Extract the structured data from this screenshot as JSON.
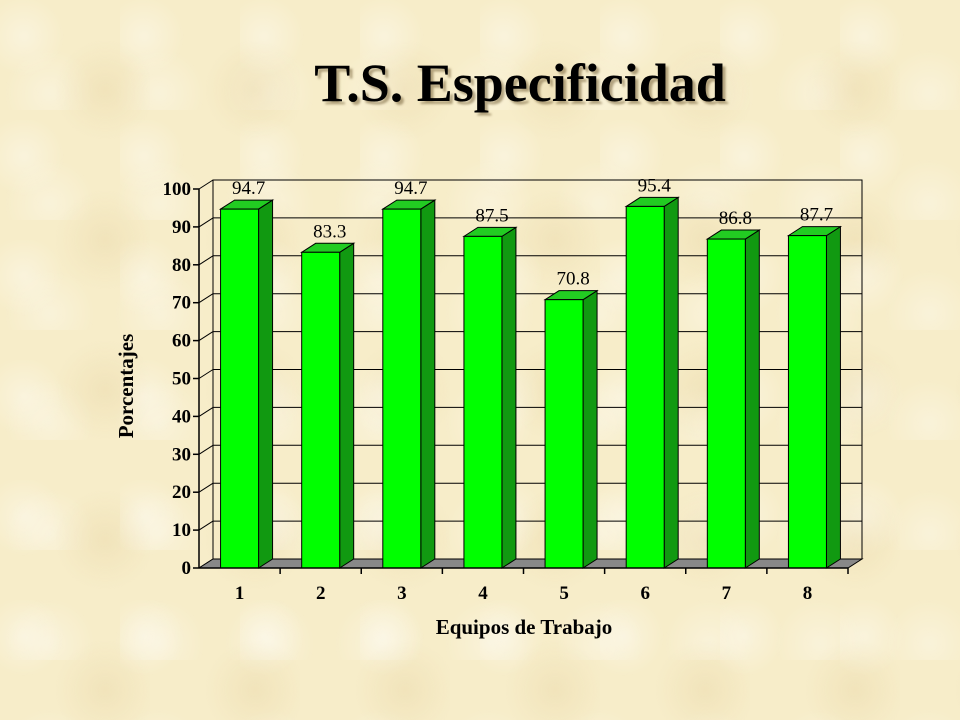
{
  "page_title": "T.S. Especificidad",
  "chart_data": {
    "type": "bar",
    "title": "T.S. Especificidad",
    "categories": [
      "1",
      "2",
      "3",
      "4",
      "5",
      "6",
      "7",
      "8"
    ],
    "values": [
      94.7,
      83.3,
      94.7,
      87.5,
      70.8,
      95.4,
      86.8,
      87.7
    ],
    "data_labels": [
      "94.7",
      "83.3",
      "94.7",
      "87.5",
      "70.8",
      "95.4",
      "86.8",
      "87.7"
    ],
    "xlabel": "Equipos de Trabajo",
    "ylabel": "Porcentajes",
    "ylim": [
      0,
      100
    ],
    "yticks": [
      "0",
      "10",
      "20",
      "30",
      "40",
      "50",
      "60",
      "70",
      "80",
      "90",
      "100"
    ],
    "grid": true,
    "legend": "none",
    "style": "3d",
    "colors": {
      "bar_front": "#00ff00",
      "bar_top": "#22cc22",
      "bar_side": "#119911",
      "floor": "#888888"
    }
  }
}
